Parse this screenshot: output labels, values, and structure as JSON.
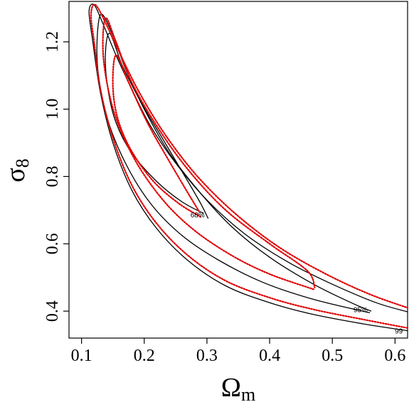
{
  "chart_data": {
    "type": "line",
    "title": "",
    "xlabel": "Ωm",
    "ylabel": "σ8",
    "xlim": [
      0.08,
      0.62
    ],
    "ylim": [
      0.32,
      1.32
    ],
    "x_ticks": [
      "0.1",
      "0.2",
      "0.3",
      "0.4",
      "0.5",
      "0.6"
    ],
    "y_ticks": [
      "0.4",
      "0.6",
      "0.8",
      "1.0",
      "1.2"
    ],
    "grid": false,
    "legend": "none",
    "contour_labels": [
      {
        "text": "68%",
        "x": 0.285,
        "y": 0.685
      },
      {
        "text": "95%",
        "x": 0.545,
        "y": 0.403
      },
      {
        "text": "99",
        "x": 0.606,
        "y": 0.34
      }
    ],
    "colors": {
      "black": "#000000",
      "red": "#e00000"
    },
    "series": [
      {
        "style": "solid",
        "color": "black",
        "level": "68%",
        "x": [
          0.295,
          0.26,
          0.22,
          0.18,
          0.155,
          0.142,
          0.138,
          0.145,
          0.165,
          0.195,
          0.23,
          0.265,
          0.29,
          0.302
        ],
        "y": [
          0.69,
          0.725,
          0.785,
          0.87,
          0.96,
          1.06,
          1.16,
          1.225,
          1.13,
          1.02,
          0.91,
          0.8,
          0.72,
          0.675
        ]
      },
      {
        "style": "solid",
        "color": "black",
        "level": "95%",
        "x": [
          0.56,
          0.47,
          0.39,
          0.32,
          0.26,
          0.21,
          0.17,
          0.14,
          0.125,
          0.13,
          0.15,
          0.17,
          0.2,
          0.24,
          0.29,
          0.34,
          0.4,
          0.47,
          0.53,
          0.562
        ],
        "y": [
          0.395,
          0.435,
          0.485,
          0.55,
          0.625,
          0.72,
          0.84,
          0.98,
          1.14,
          1.28,
          1.22,
          1.12,
          1.0,
          0.87,
          0.75,
          0.65,
          0.56,
          0.48,
          0.425,
          0.4
        ]
      },
      {
        "style": "solid",
        "color": "black",
        "level": "99%",
        "x": [
          0.62,
          0.55,
          0.47,
          0.4,
          0.33,
          0.27,
          0.22,
          0.18,
          0.15,
          0.13,
          0.118,
          0.112,
          0.12,
          0.135,
          0.155,
          0.18,
          0.21,
          0.25,
          0.3,
          0.36,
          0.43,
          0.5,
          0.57,
          0.62
        ],
        "y": [
          0.342,
          0.362,
          0.39,
          0.425,
          0.475,
          0.55,
          0.645,
          0.76,
          0.9,
          1.05,
          1.2,
          1.29,
          1.31,
          1.25,
          1.16,
          1.06,
          0.95,
          0.84,
          0.73,
          0.63,
          0.545,
          0.48,
          0.425,
          0.398
        ]
      },
      {
        "style": "dotted",
        "color": "red",
        "level": "68%",
        "x": [
          0.29,
          0.255,
          0.215,
          0.18,
          0.158,
          0.15,
          0.155,
          0.175,
          0.205,
          0.24,
          0.27,
          0.288
        ],
        "y": [
          0.68,
          0.72,
          0.785,
          0.875,
          0.97,
          1.07,
          1.16,
          1.08,
          0.96,
          0.845,
          0.75,
          0.695
        ]
      },
      {
        "style": "dotted",
        "color": "red",
        "level": "95%",
        "x": [
          0.47,
          0.4,
          0.34,
          0.28,
          0.23,
          0.185,
          0.152,
          0.135,
          0.138,
          0.155,
          0.18,
          0.22,
          0.27,
          0.33,
          0.4,
          0.46,
          0.472
        ],
        "y": [
          0.465,
          0.51,
          0.565,
          0.64,
          0.73,
          0.85,
          0.99,
          1.15,
          1.27,
          1.2,
          1.08,
          0.95,
          0.82,
          0.7,
          0.6,
          0.52,
          0.47
        ]
      },
      {
        "style": "dotted",
        "color": "red",
        "level": "99%",
        "x": [
          0.62,
          0.55,
          0.47,
          0.4,
          0.33,
          0.27,
          0.22,
          0.18,
          0.15,
          0.13,
          0.12,
          0.115,
          0.122,
          0.14,
          0.165,
          0.195,
          0.235,
          0.285,
          0.345,
          0.415,
          0.49,
          0.56,
          0.62
        ],
        "y": [
          0.35,
          0.375,
          0.405,
          0.44,
          0.49,
          0.565,
          0.66,
          0.775,
          0.915,
          1.06,
          1.2,
          1.28,
          1.31,
          1.25,
          1.15,
          1.04,
          0.92,
          0.8,
          0.69,
          0.59,
          0.51,
          0.45,
          0.41
        ]
      }
    ]
  }
}
